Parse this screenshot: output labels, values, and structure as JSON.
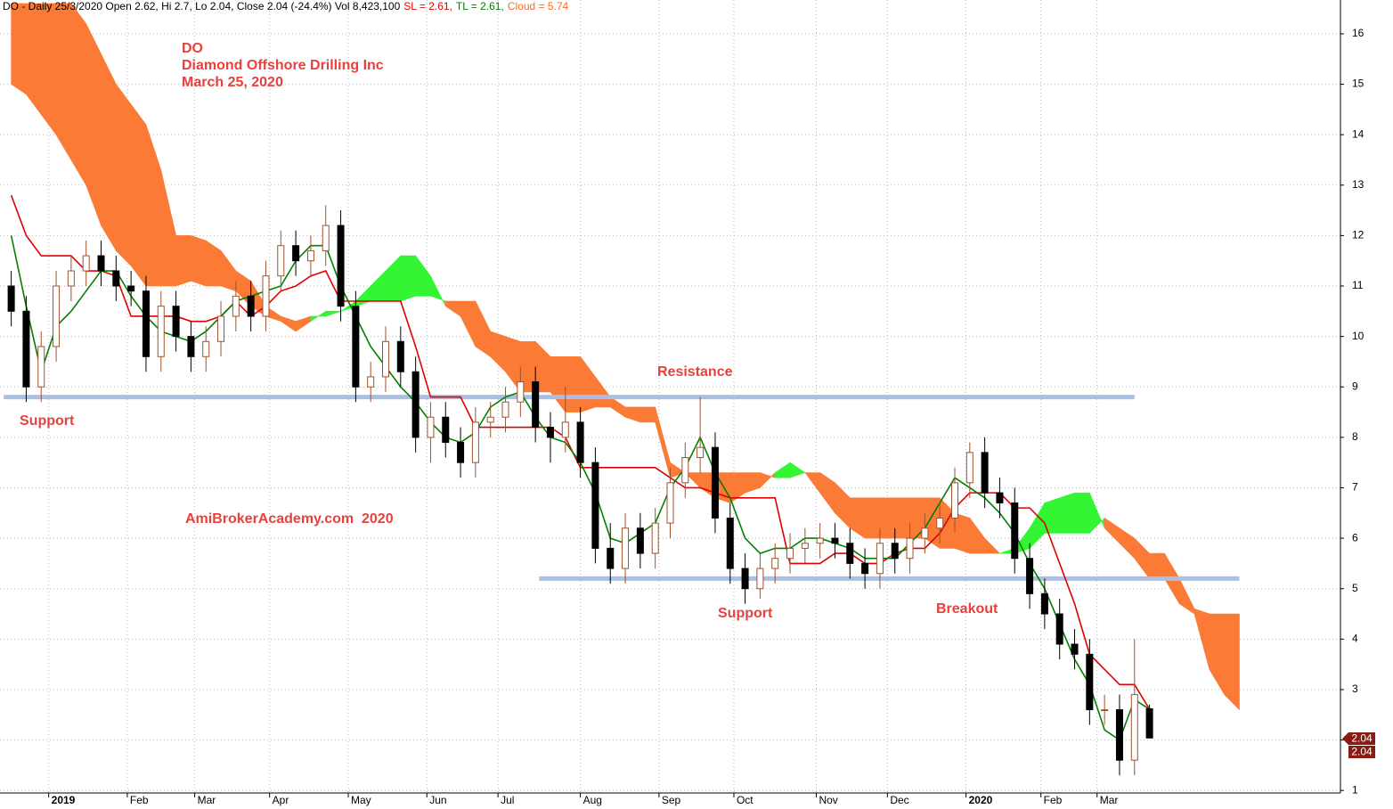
{
  "chart_data": {
    "type": "candlestick",
    "header": [
      {
        "text": "DO - Daily 25/3/2020 Open 2.62, Hi 2.7, Lo 2.04, Close 2.04 (-24.4%) Vol 8,423,100",
        "color": "#000000"
      },
      {
        "text": "SL = 2.61,",
        "color": "#e00000"
      },
      {
        "text": "TL = 2.61,",
        "color": "#008000"
      },
      {
        "text": "Cloud = 5.74",
        "color": "#ff6a1a"
      }
    ],
    "title": "DO",
    "subtitle": "Diamond Offshore Drilling Inc",
    "date": "March 25, 2020",
    "annotations": [
      "Support",
      "Resistance",
      "Support",
      "Breakout",
      "AmiBrokerAcademy.com  2020"
    ],
    "xlim": [
      -1,
      357
    ],
    "ylim": [
      0.95,
      16.67
    ],
    "yticks": [
      1,
      2,
      3,
      4,
      5,
      6,
      7,
      8,
      9,
      10,
      11,
      12,
      13,
      14,
      15,
      16
    ],
    "xticks": [
      {
        "value": 12,
        "label": "2019"
      },
      {
        "value": 33,
        "label": "Feb"
      },
      {
        "value": 51,
        "label": "Mar"
      },
      {
        "value": 71,
        "label": "Apr"
      },
      {
        "value": 92,
        "label": "May"
      },
      {
        "value": 113,
        "label": "Jun"
      },
      {
        "value": 132,
        "label": "Jul"
      },
      {
        "value": 154,
        "label": "Aug"
      },
      {
        "value": 175,
        "label": "Sep"
      },
      {
        "value": 195,
        "label": "Oct"
      },
      {
        "value": 217,
        "label": "Nov"
      },
      {
        "value": 236,
        "label": "Dec"
      },
      {
        "value": 257,
        "label": "2020"
      },
      {
        "value": 277,
        "label": "Feb"
      },
      {
        "value": 292,
        "label": "Mar"
      }
    ],
    "grid": true,
    "up_color": "#a0522d",
    "down_color": "#000000",
    "x": [
      2,
      6,
      10,
      14,
      18,
      22,
      26,
      30,
      34,
      38,
      42,
      46,
      50,
      54,
      58,
      62,
      66,
      70,
      74,
      78,
      82,
      86,
      90,
      94,
      98,
      102,
      106,
      110,
      114,
      118,
      122,
      126,
      130,
      134,
      138,
      142,
      146,
      150,
      154,
      158,
      162,
      166,
      170,
      174,
      178,
      182,
      186,
      190,
      194,
      198,
      202,
      206,
      210,
      214,
      218,
      222,
      226,
      230,
      234,
      238,
      242,
      246,
      250,
      254,
      258,
      262,
      266,
      270,
      274,
      278,
      282,
      286,
      290,
      294,
      298,
      302,
      306
    ],
    "open": [
      11.0,
      10.5,
      9.0,
      9.8,
      11.0,
      11.3,
      11.6,
      11.3,
      11.0,
      10.9,
      9.6,
      10.6,
      10.0,
      9.6,
      9.9,
      10.4,
      10.8,
      10.4,
      11.2,
      11.8,
      11.5,
      11.7,
      12.2,
      10.6,
      9.0,
      9.2,
      9.9,
      9.3,
      8.0,
      8.4,
      7.9,
      7.5,
      8.3,
      8.4,
      8.7,
      9.1,
      8.2,
      8.0,
      8.3,
      7.5,
      5.8,
      5.4,
      6.2,
      5.7,
      6.3,
      7.1,
      7.6,
      7.8,
      6.4,
      5.4,
      5.0,
      5.4,
      5.6,
      5.8,
      5.9,
      6.0,
      5.9,
      5.5,
      5.3,
      5.9,
      5.6,
      6.0,
      6.2,
      6.4,
      7.1,
      7.7,
      6.9,
      6.7,
      5.6,
      4.9,
      4.5,
      3.9,
      3.7,
      2.6,
      2.6,
      1.6,
      2.62
    ],
    "high": [
      11.3,
      10.8,
      10.1,
      11.3,
      11.6,
      11.9,
      11.9,
      11.6,
      11.3,
      11.2,
      10.9,
      10.9,
      10.3,
      10.2,
      10.7,
      11.1,
      11.1,
      11.5,
      12.1,
      12.1,
      12.0,
      12.6,
      12.5,
      10.9,
      9.5,
      10.2,
      10.2,
      9.6,
      8.7,
      8.7,
      8.2,
      8.6,
      8.7,
      9.0,
      9.4,
      9.4,
      8.5,
      9.0,
      8.6,
      7.8,
      6.3,
      6.5,
      6.5,
      6.6,
      7.4,
      7.9,
      8.8,
      8.1,
      6.7,
      5.7,
      5.7,
      5.9,
      6.1,
      6.2,
      6.3,
      6.3,
      6.2,
      5.8,
      6.2,
      6.2,
      6.3,
      6.5,
      6.7,
      7.4,
      7.9,
      8.0,
      7.2,
      7.0,
      5.9,
      5.2,
      4.8,
      4.2,
      4.0,
      2.9,
      2.9,
      4.0,
      2.7
    ],
    "low": [
      10.2,
      8.7,
      8.7,
      9.5,
      10.7,
      11.0,
      11.0,
      10.7,
      10.6,
      9.3,
      9.3,
      9.7,
      9.3,
      9.3,
      9.6,
      10.1,
      10.1,
      10.1,
      10.9,
      11.2,
      11.2,
      11.4,
      10.3,
      8.7,
      8.7,
      8.9,
      9.0,
      7.7,
      7.5,
      7.6,
      7.2,
      7.2,
      8.0,
      8.1,
      8.4,
      7.9,
      7.5,
      7.7,
      7.2,
      5.5,
      5.1,
      5.1,
      5.4,
      5.4,
      6.0,
      6.8,
      7.3,
      6.1,
      5.1,
      4.7,
      4.8,
      5.1,
      5.3,
      5.5,
      5.6,
      5.6,
      5.2,
      5.0,
      5.0,
      5.3,
      5.3,
      5.7,
      5.9,
      6.1,
      6.8,
      6.6,
      6.4,
      5.3,
      4.6,
      4.2,
      3.6,
      3.4,
      2.3,
      2.3,
      1.3,
      1.3,
      2.04
    ],
    "close": [
      10.5,
      9.0,
      9.8,
      11.0,
      11.3,
      11.6,
      11.3,
      11.0,
      10.9,
      9.6,
      10.6,
      10.0,
      9.6,
      9.9,
      10.4,
      10.8,
      10.4,
      11.2,
      11.8,
      11.5,
      11.7,
      12.2,
      10.6,
      9.0,
      9.2,
      9.9,
      9.3,
      8.0,
      8.4,
      7.9,
      7.5,
      8.3,
      8.4,
      8.7,
      9.1,
      8.2,
      8.0,
      8.3,
      7.5,
      5.8,
      5.4,
      6.2,
      5.7,
      6.3,
      7.1,
      7.6,
      7.8,
      6.4,
      5.4,
      5.0,
      5.4,
      5.6,
      5.8,
      5.9,
      6.0,
      5.9,
      5.5,
      5.3,
      5.9,
      5.6,
      6.0,
      6.2,
      6.4,
      7.1,
      7.7,
      6.9,
      6.7,
      5.6,
      4.9,
      4.5,
      3.9,
      3.7,
      2.6,
      2.6,
      1.6,
      2.9,
      2.04
    ],
    "lines": [
      {
        "color": "#e00000",
        "values": [
          12.8,
          12.0,
          11.6,
          11.6,
          11.6,
          11.3,
          11.3,
          11.2,
          10.4,
          10.4,
          10.4,
          10.4,
          10.3,
          10.3,
          10.4,
          10.7,
          10.4,
          10.6,
          10.9,
          11.0,
          11.2,
          11.3,
          10.7,
          10.7,
          10.7,
          10.7,
          10.7,
          9.8,
          8.8,
          8.8,
          8.8,
          8.2,
          8.2,
          8.2,
          8.2,
          8.2,
          8.2,
          8.0,
          7.4,
          7.4,
          7.4,
          7.4,
          7.4,
          7.4,
          7.2,
          7.0,
          7.0,
          6.9,
          6.8,
          6.8,
          6.8,
          6.8,
          5.5,
          5.5,
          5.5,
          5.7,
          5.7,
          5.5,
          5.5,
          5.7,
          5.8,
          5.8,
          6.1,
          6.6,
          6.9,
          6.9,
          6.9,
          6.6,
          6.6,
          6.3,
          5.5,
          4.7,
          3.7,
          3.4,
          3.1,
          3.1,
          2.61
        ]
      },
      {
        "color": "#008000",
        "values": [
          12.0,
          10.6,
          9.3,
          10.2,
          10.5,
          10.9,
          11.3,
          11.3,
          10.8,
          10.4,
          10.1,
          10.0,
          9.9,
          10.1,
          10.4,
          10.7,
          10.8,
          10.9,
          11.0,
          11.5,
          11.8,
          11.8,
          11.0,
          10.4,
          9.8,
          9.4,
          9.0,
          8.7,
          8.3,
          8.0,
          7.9,
          8.1,
          8.6,
          8.8,
          8.9,
          8.4,
          8.0,
          7.9,
          7.5,
          6.9,
          6.0,
          5.9,
          6.1,
          6.3,
          7.0,
          7.4,
          8.0,
          7.3,
          6.8,
          6.0,
          5.7,
          5.8,
          5.8,
          6.0,
          6.0,
          5.9,
          5.8,
          5.6,
          5.6,
          5.6,
          5.9,
          6.2,
          6.7,
          7.2,
          7.0,
          6.8,
          6.5,
          6.1,
          5.5,
          5.0,
          4.3,
          3.6,
          3.1,
          2.2,
          2.0,
          2.8,
          2.61
        ]
      }
    ],
    "cloud": {
      "up_color": "#33f533",
      "down_color": "#fb7a35",
      "x": [
        2,
        6,
        10,
        14,
        18,
        22,
        26,
        30,
        34,
        38,
        42,
        46,
        50,
        54,
        58,
        62,
        66,
        70,
        74,
        78,
        82,
        86,
        90,
        94,
        98,
        102,
        106,
        110,
        114,
        118,
        122,
        126,
        130,
        134,
        138,
        142,
        146,
        150,
        154,
        158,
        162,
        166,
        170,
        174,
        178,
        182,
        186,
        190,
        194,
        198,
        202,
        206,
        210,
        214,
        218,
        222,
        226,
        230,
        234,
        238,
        242,
        246,
        250,
        254,
        258,
        262,
        266,
        270,
        274,
        278,
        282,
        286,
        290,
        294,
        298,
        302,
        306,
        310,
        314,
        318,
        322,
        326,
        330
      ],
      "span_a": [
        15.0,
        14.8,
        14.4,
        14.0,
        13.5,
        13.0,
        12.2,
        11.7,
        11.4,
        11.0,
        11.0,
        11.0,
        11.1,
        11.0,
        11.0,
        10.9,
        10.6,
        10.4,
        10.3,
        10.1,
        10.3,
        10.5,
        10.5,
        10.7,
        11.0,
        11.3,
        11.6,
        11.6,
        11.2,
        10.6,
        10.4,
        9.8,
        9.6,
        9.3,
        8.9,
        8.9,
        8.9,
        8.5,
        8.5,
        8.6,
        8.6,
        8.4,
        8.3,
        8.3,
        7.2,
        7.3,
        7.0,
        6.8,
        6.7,
        6.9,
        7.0,
        7.3,
        7.5,
        7.3,
        6.9,
        6.5,
        6.2,
        6.0,
        6.0,
        6.0,
        6.0,
        6.0,
        5.8,
        5.8,
        5.7,
        5.7,
        5.7,
        5.8,
        6.2,
        6.7,
        6.8,
        6.9,
        6.9,
        6.2,
        5.9,
        5.6,
        5.2,
        5.2,
        4.7,
        4.5,
        3.4,
        2.9,
        2.6
      ],
      "span_b": [
        16.6,
        16.6,
        16.6,
        16.6,
        16.6,
        16.2,
        15.6,
        15.0,
        14.6,
        14.2,
        13.3,
        12.0,
        12.0,
        11.9,
        11.7,
        11.3,
        11.1,
        10.6,
        10.4,
        10.3,
        10.4,
        10.4,
        10.5,
        10.6,
        10.7,
        10.7,
        10.7,
        10.8,
        10.8,
        10.7,
        10.7,
        10.7,
        10.1,
        10.0,
        9.9,
        9.9,
        9.6,
        9.6,
        9.6,
        9.2,
        8.8,
        8.6,
        8.6,
        8.6,
        7.5,
        7.3,
        7.3,
        7.3,
        7.3,
        7.3,
        7.3,
        7.2,
        7.2,
        7.3,
        7.3,
        7.1,
        6.8,
        6.8,
        6.8,
        6.8,
        6.8,
        6.8,
        6.8,
        6.5,
        6.4,
        6.0,
        5.7,
        5.7,
        5.8,
        6.1,
        6.1,
        6.1,
        6.1,
        6.4,
        6.2,
        6.0,
        5.7,
        5.7,
        5.2,
        4.6,
        4.5,
        4.5,
        4.5
      ]
    },
    "levels": [
      {
        "value": 8.8,
        "from": 0,
        "to": 302,
        "color": "#a9bfe4"
      },
      {
        "value": 5.2,
        "from": 143,
        "to": 330,
        "color": "#a9bfe4"
      }
    ]
  }
}
